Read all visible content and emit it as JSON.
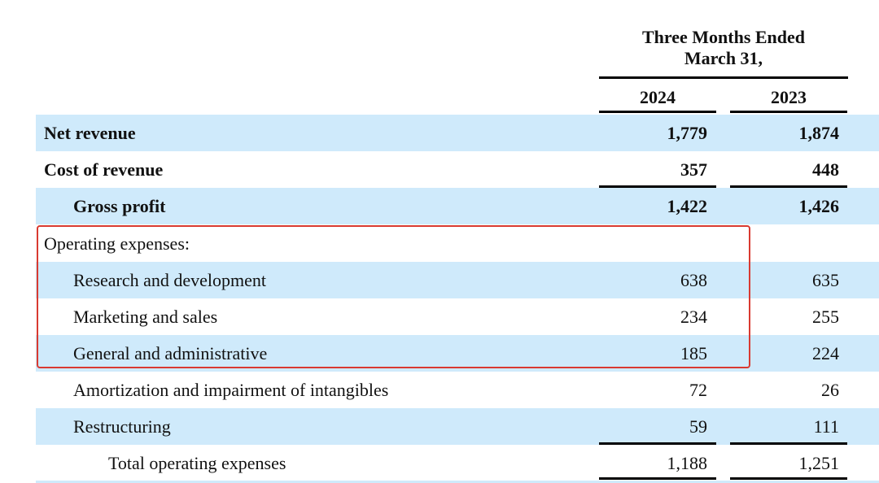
{
  "header": {
    "group_line1": "Three Months Ended",
    "group_line2": "March 31,",
    "year1": "2024",
    "year2": "2023"
  },
  "rows": [
    {
      "label": "Net revenue",
      "v2024": "1,779",
      "v2023": "1,874"
    },
    {
      "label": "Cost of revenue",
      "v2024": "357",
      "v2023": "448"
    },
    {
      "label": "Gross profit",
      "v2024": "1,422",
      "v2023": "1,426"
    },
    {
      "label": "Operating expenses:",
      "v2024": "",
      "v2023": ""
    },
    {
      "label": "Research and development",
      "v2024": "638",
      "v2023": "635"
    },
    {
      "label": "Marketing and sales",
      "v2024": "234",
      "v2023": "255"
    },
    {
      "label": "General and administrative",
      "v2024": "185",
      "v2023": "224"
    },
    {
      "label": "Amortization and impairment of intangibles",
      "v2024": "72",
      "v2023": "26"
    },
    {
      "label": "Restructuring",
      "v2024": "59",
      "v2023": "111"
    },
    {
      "label": "Total operating expenses",
      "v2024": "1,188",
      "v2023": "1,251"
    }
  ],
  "colors": {
    "row_shade": "#cfeafb",
    "highlight_border": "#d93a31"
  }
}
